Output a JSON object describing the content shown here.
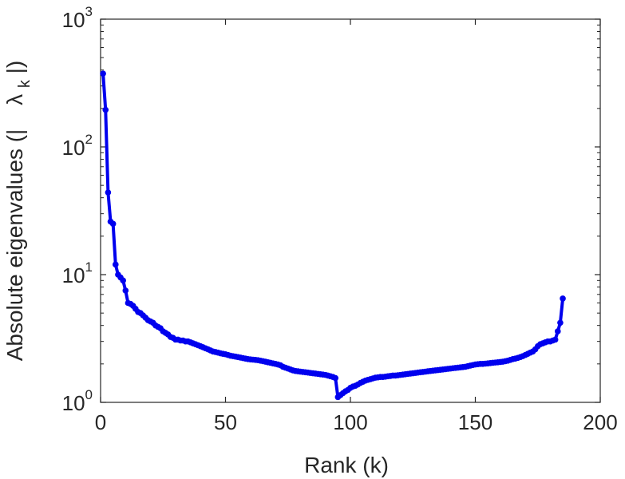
{
  "chart_data": {
    "type": "line",
    "xlabel": "Rank (k)",
    "ylabel_parts": [
      "Absolute eigenvalues (|",
      "λ",
      "k",
      "|)"
    ],
    "x_scale": "linear",
    "y_scale": "log",
    "xlim": [
      0,
      200
    ],
    "ylim": [
      1,
      1000
    ],
    "x_ticks": [
      0,
      50,
      100,
      150,
      200
    ],
    "x_tick_labels": [
      "0",
      "50",
      "100",
      "150",
      "200"
    ],
    "y_ticks": [
      1,
      10,
      100,
      1000
    ],
    "y_tick_labels": [
      {
        "base": "10",
        "exp": "0"
      },
      {
        "base": "10",
        "exp": "1"
      },
      {
        "base": "10",
        "exp": "2"
      },
      {
        "base": "10",
        "exp": "3"
      }
    ],
    "grid": false,
    "colors": {
      "series": "#0000ee",
      "axes": "#262626"
    },
    "series": [
      {
        "marker": "circle",
        "points": [
          [
            1,
            375
          ],
          [
            2,
            195
          ],
          [
            3,
            44
          ],
          [
            4,
            26
          ],
          [
            5,
            25
          ],
          [
            6,
            12
          ],
          [
            7,
            10
          ],
          [
            8,
            9.5
          ],
          [
            9,
            9.0
          ],
          [
            10,
            7.5
          ],
          [
            11,
            6.0
          ],
          [
            12,
            5.9
          ],
          [
            13,
            5.7
          ],
          [
            14,
            5.4
          ],
          [
            15,
            5.1
          ],
          [
            16,
            5.0
          ],
          [
            17,
            4.8
          ],
          [
            18,
            4.6
          ],
          [
            19,
            4.4
          ],
          [
            20,
            4.3
          ],
          [
            21,
            4.2
          ],
          [
            22,
            4.0
          ],
          [
            23,
            3.9
          ],
          [
            24,
            3.8
          ],
          [
            25,
            3.6
          ],
          [
            26,
            3.5
          ],
          [
            27,
            3.4
          ],
          [
            28,
            3.25
          ],
          [
            29,
            3.2
          ],
          [
            30,
            3.1
          ],
          [
            31,
            3.1
          ],
          [
            32,
            3.05
          ],
          [
            33,
            3.05
          ],
          [
            34,
            3.0
          ],
          [
            35,
            3.0
          ],
          [
            36,
            2.95
          ],
          [
            37,
            2.9
          ],
          [
            38,
            2.85
          ],
          [
            39,
            2.8
          ],
          [
            40,
            2.75
          ],
          [
            41,
            2.7
          ],
          [
            42,
            2.65
          ],
          [
            43,
            2.6
          ],
          [
            44,
            2.55
          ],
          [
            45,
            2.5
          ],
          [
            46,
            2.48
          ],
          [
            47,
            2.45
          ],
          [
            48,
            2.42
          ],
          [
            49,
            2.4
          ],
          [
            50,
            2.38
          ],
          [
            51,
            2.35
          ],
          [
            52,
            2.32
          ],
          [
            53,
            2.3
          ],
          [
            54,
            2.28
          ],
          [
            55,
            2.26
          ],
          [
            56,
            2.24
          ],
          [
            57,
            2.22
          ],
          [
            58,
            2.2
          ],
          [
            59,
            2.18
          ],
          [
            60,
            2.17
          ],
          [
            61,
            2.16
          ],
          [
            62,
            2.15
          ],
          [
            63,
            2.14
          ],
          [
            64,
            2.12
          ],
          [
            65,
            2.1
          ],
          [
            66,
            2.08
          ],
          [
            67,
            2.06
          ],
          [
            68,
            2.04
          ],
          [
            69,
            2.02
          ],
          [
            70,
            2.0
          ],
          [
            71,
            1.98
          ],
          [
            72,
            1.95
          ],
          [
            73,
            1.9
          ],
          [
            74,
            1.87
          ],
          [
            75,
            1.84
          ],
          [
            76,
            1.81
          ],
          [
            77,
            1.78
          ],
          [
            78,
            1.76
          ],
          [
            79,
            1.75
          ],
          [
            80,
            1.74
          ],
          [
            81,
            1.73
          ],
          [
            82,
            1.72
          ],
          [
            83,
            1.71
          ],
          [
            84,
            1.7
          ],
          [
            85,
            1.69
          ],
          [
            86,
            1.68
          ],
          [
            87,
            1.67
          ],
          [
            88,
            1.66
          ],
          [
            89,
            1.65
          ],
          [
            90,
            1.64
          ],
          [
            91,
            1.62
          ],
          [
            92,
            1.6
          ],
          [
            93,
            1.58
          ],
          [
            94,
            1.55
          ],
          [
            95,
            1.1
          ],
          [
            96,
            1.14
          ],
          [
            97,
            1.18
          ],
          [
            98,
            1.22
          ],
          [
            99,
            1.25
          ],
          [
            100,
            1.3
          ],
          [
            101,
            1.33
          ],
          [
            102,
            1.35
          ],
          [
            103,
            1.38
          ],
          [
            104,
            1.42
          ],
          [
            105,
            1.45
          ],
          [
            106,
            1.48
          ],
          [
            107,
            1.5
          ],
          [
            108,
            1.52
          ],
          [
            109,
            1.54
          ],
          [
            110,
            1.56
          ],
          [
            111,
            1.57
          ],
          [
            112,
            1.58
          ],
          [
            113,
            1.58
          ],
          [
            114,
            1.59
          ],
          [
            115,
            1.6
          ],
          [
            116,
            1.61
          ],
          [
            117,
            1.62
          ],
          [
            118,
            1.62
          ],
          [
            119,
            1.63
          ],
          [
            120,
            1.64
          ],
          [
            121,
            1.65
          ],
          [
            122,
            1.66
          ],
          [
            123,
            1.67
          ],
          [
            124,
            1.68
          ],
          [
            125,
            1.69
          ],
          [
            126,
            1.7
          ],
          [
            127,
            1.71
          ],
          [
            128,
            1.72
          ],
          [
            129,
            1.73
          ],
          [
            130,
            1.74
          ],
          [
            131,
            1.75
          ],
          [
            132,
            1.76
          ],
          [
            133,
            1.77
          ],
          [
            134,
            1.78
          ],
          [
            135,
            1.79
          ],
          [
            136,
            1.8
          ],
          [
            137,
            1.81
          ],
          [
            138,
            1.82
          ],
          [
            139,
            1.83
          ],
          [
            140,
            1.84
          ],
          [
            141,
            1.85
          ],
          [
            142,
            1.86
          ],
          [
            143,
            1.87
          ],
          [
            144,
            1.88
          ],
          [
            145,
            1.89
          ],
          [
            146,
            1.9
          ],
          [
            147,
            1.92
          ],
          [
            148,
            1.94
          ],
          [
            149,
            1.96
          ],
          [
            150,
            1.98
          ],
          [
            151,
            1.99
          ],
          [
            152,
            2.0
          ],
          [
            153,
            2.0
          ],
          [
            154,
            2.01
          ],
          [
            155,
            2.02
          ],
          [
            156,
            2.03
          ],
          [
            157,
            2.04
          ],
          [
            158,
            2.05
          ],
          [
            159,
            2.06
          ],
          [
            160,
            2.07
          ],
          [
            161,
            2.08
          ],
          [
            162,
            2.1
          ],
          [
            163,
            2.12
          ],
          [
            164,
            2.15
          ],
          [
            165,
            2.18
          ],
          [
            166,
            2.2
          ],
          [
            167,
            2.23
          ],
          [
            168,
            2.26
          ],
          [
            169,
            2.3
          ],
          [
            170,
            2.35
          ],
          [
            171,
            2.4
          ],
          [
            172,
            2.45
          ],
          [
            173,
            2.5
          ],
          [
            174,
            2.6
          ],
          [
            175,
            2.75
          ],
          [
            176,
            2.85
          ],
          [
            177,
            2.9
          ],
          [
            178,
            2.95
          ],
          [
            179,
            3.0
          ],
          [
            180,
            3.0
          ],
          [
            181,
            3.05
          ],
          [
            182,
            3.1
          ],
          [
            183,
            3.6
          ],
          [
            184,
            4.2
          ],
          [
            185,
            6.5
          ]
        ]
      }
    ]
  }
}
